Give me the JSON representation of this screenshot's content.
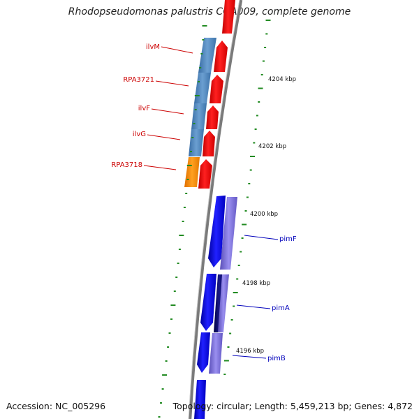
{
  "title": "Rhodopseudomonas palustris CGA009, complete genome",
  "accession": "Accession: NC_005296",
  "summary": "Topology: circular; Length: 5,459,213 bp; Genes: 4,872",
  "tick_labels": [
    "4204 kbp",
    "4202 kbp",
    "4200 kbp",
    "4198 kbp",
    "4196 kbp"
  ],
  "left_genes": [
    {
      "name": "ilvM",
      "color": "#cc0000"
    },
    {
      "name": "RPA3721",
      "color": "#cc0000"
    },
    {
      "name": "ilvF",
      "color": "#cc0000"
    },
    {
      "name": "ilvG",
      "color": "#cc0000"
    },
    {
      "name": "RPA3718",
      "color": "#cc0000"
    }
  ],
  "right_genes": [
    {
      "name": "pimF",
      "color": "#0000bb"
    },
    {
      "name": "pimA",
      "color": "#0000bb"
    },
    {
      "name": "pimB",
      "color": "#0000bb"
    }
  ],
  "colors": {
    "forward_cds": "#ff0000",
    "reverse_cds": "#0000ff",
    "steel_feature": "#4f86bd",
    "orange_feature": "#ff8c00",
    "purple_feature": "#7b6fd6",
    "navy_feature": "#000066",
    "backbone": "#777777",
    "ticks": "#228b22"
  }
}
